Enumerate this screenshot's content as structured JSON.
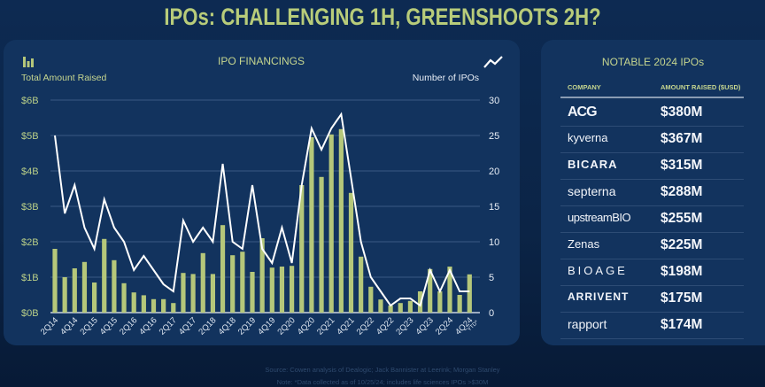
{
  "title": "IPOs: CHALLENGING 1H, GREENSHOOTS 2H?",
  "left_panel": {
    "chart_title": "IPO FINANCINGS",
    "left_legend": "Total Amount Raised",
    "right_legend": "Number of IPOs",
    "left_legend_icon": "bar-chart-icon",
    "right_legend_icon": "line-chart-icon"
  },
  "colors": {
    "bar": "#b5c77a",
    "line": "#ffffff",
    "accent": "#c6d68f"
  },
  "chart_data": {
    "type": "bar",
    "title": "IPO FINANCINGS",
    "xlabel": "",
    "ylabel": "Total Amount Raised",
    "y2label": "Number of IPOs",
    "ylim": [
      0,
      6
    ],
    "y2lim": [
      0,
      30
    ],
    "yticks": [
      "$0B",
      "$1B",
      "$2B",
      "$3B",
      "$4B",
      "$5B",
      "$6B"
    ],
    "y2ticks": [
      "0",
      "5",
      "10",
      "15",
      "20",
      "25",
      "30"
    ],
    "grid": true,
    "categories": [
      "2Q14",
      "3Q14",
      "4Q14",
      "1Q15",
      "2Q15",
      "3Q15",
      "4Q15",
      "1Q16",
      "2Q16",
      "3Q16",
      "4Q16",
      "1Q17",
      "2Q17",
      "3Q17",
      "4Q17",
      "1Q18",
      "2Q18",
      "3Q18",
      "4Q18",
      "1Q19",
      "2Q19",
      "3Q19",
      "4Q19",
      "1Q20",
      "2Q20",
      "3Q20",
      "4Q20",
      "1Q21",
      "2Q21",
      "3Q21",
      "4Q21",
      "1Q22",
      "2Q22",
      "3Q22",
      "4Q22",
      "1Q23",
      "2Q23",
      "3Q23",
      "4Q23",
      "1Q24",
      "2Q24",
      "3Q24",
      "4Q24"
    ],
    "xtick_labels": [
      "2Q14",
      "4Q14",
      "2Q15",
      "4Q15",
      "2Q16",
      "4Q16",
      "2Q17",
      "4Q17",
      "2Q18",
      "4Q18",
      "2Q19",
      "4Q19",
      "2Q20",
      "4Q20",
      "2Q21",
      "4Q21",
      "2Q22",
      "4Q22",
      "2Q23",
      "4Q23",
      "2Q24",
      "4Q24"
    ],
    "last_label_note": "YTD*",
    "series": [
      {
        "name": "Total Amount Raised ($B)",
        "type": "bar",
        "axis": "left",
        "values": [
          1.8,
          1.0,
          1.25,
          1.43,
          0.85,
          2.08,
          1.48,
          0.83,
          0.57,
          0.49,
          0.38,
          0.38,
          0.27,
          1.12,
          1.09,
          1.68,
          1.09,
          2.47,
          1.62,
          1.72,
          1.15,
          2.1,
          1.27,
          1.3,
          1.32,
          3.6,
          4.95,
          3.83,
          5.03,
          5.18,
          3.38,
          1.58,
          0.73,
          0.37,
          0.2,
          0.27,
          0.33,
          0.6,
          1.23,
          0.6,
          1.3,
          0.5,
          1.08
        ]
      },
      {
        "name": "Number of IPOs",
        "type": "line",
        "axis": "right",
        "values": [
          25,
          14,
          18,
          12,
          9,
          16,
          12,
          10,
          6,
          8,
          6,
          4,
          3,
          13,
          10,
          12,
          10,
          21,
          10,
          9,
          18,
          9,
          7,
          12,
          7,
          18,
          26,
          23,
          26,
          28,
          19,
          10,
          5,
          3,
          1,
          2,
          2,
          1,
          6,
          3,
          6,
          3,
          3
        ]
      }
    ]
  },
  "right_panel": {
    "title": "NOTABLE 2024 IPOs",
    "headers": [
      "COMPANY",
      "AMOUNT RAISED ($USD)"
    ],
    "rows": [
      {
        "company": "ACG Oncology",
        "logo_text": "ACG",
        "amount": "$380M"
      },
      {
        "company": "Kyverna",
        "logo_text": "kyverna",
        "amount": "$367M"
      },
      {
        "company": "Bicara Therapeutics",
        "logo_text": "BICARA",
        "amount": "$315M"
      },
      {
        "company": "Septerna",
        "logo_text": "septerna",
        "amount": "$288M"
      },
      {
        "company": "Upstream Bio",
        "logo_text": "upstreamBIO",
        "amount": "$255M"
      },
      {
        "company": "Zenas BioPharma",
        "logo_text": "Zenas",
        "amount": "$225M"
      },
      {
        "company": "BioAge",
        "logo_text": "BIOAGE",
        "amount": "$198M"
      },
      {
        "company": "ArriVent",
        "logo_text": "ARRIVENT",
        "amount": "$175M"
      },
      {
        "company": "Rapport Therapeutics",
        "logo_text": "rapport",
        "amount": "$174M"
      }
    ]
  },
  "footer": {
    "source": "Source: Cowen analysis of Dealogic; Jack Bannister at Leerink; Morgan Stanley",
    "note": "Note: *Data collected as of 10/25/24; includes life sciences IPOs >$30M"
  }
}
